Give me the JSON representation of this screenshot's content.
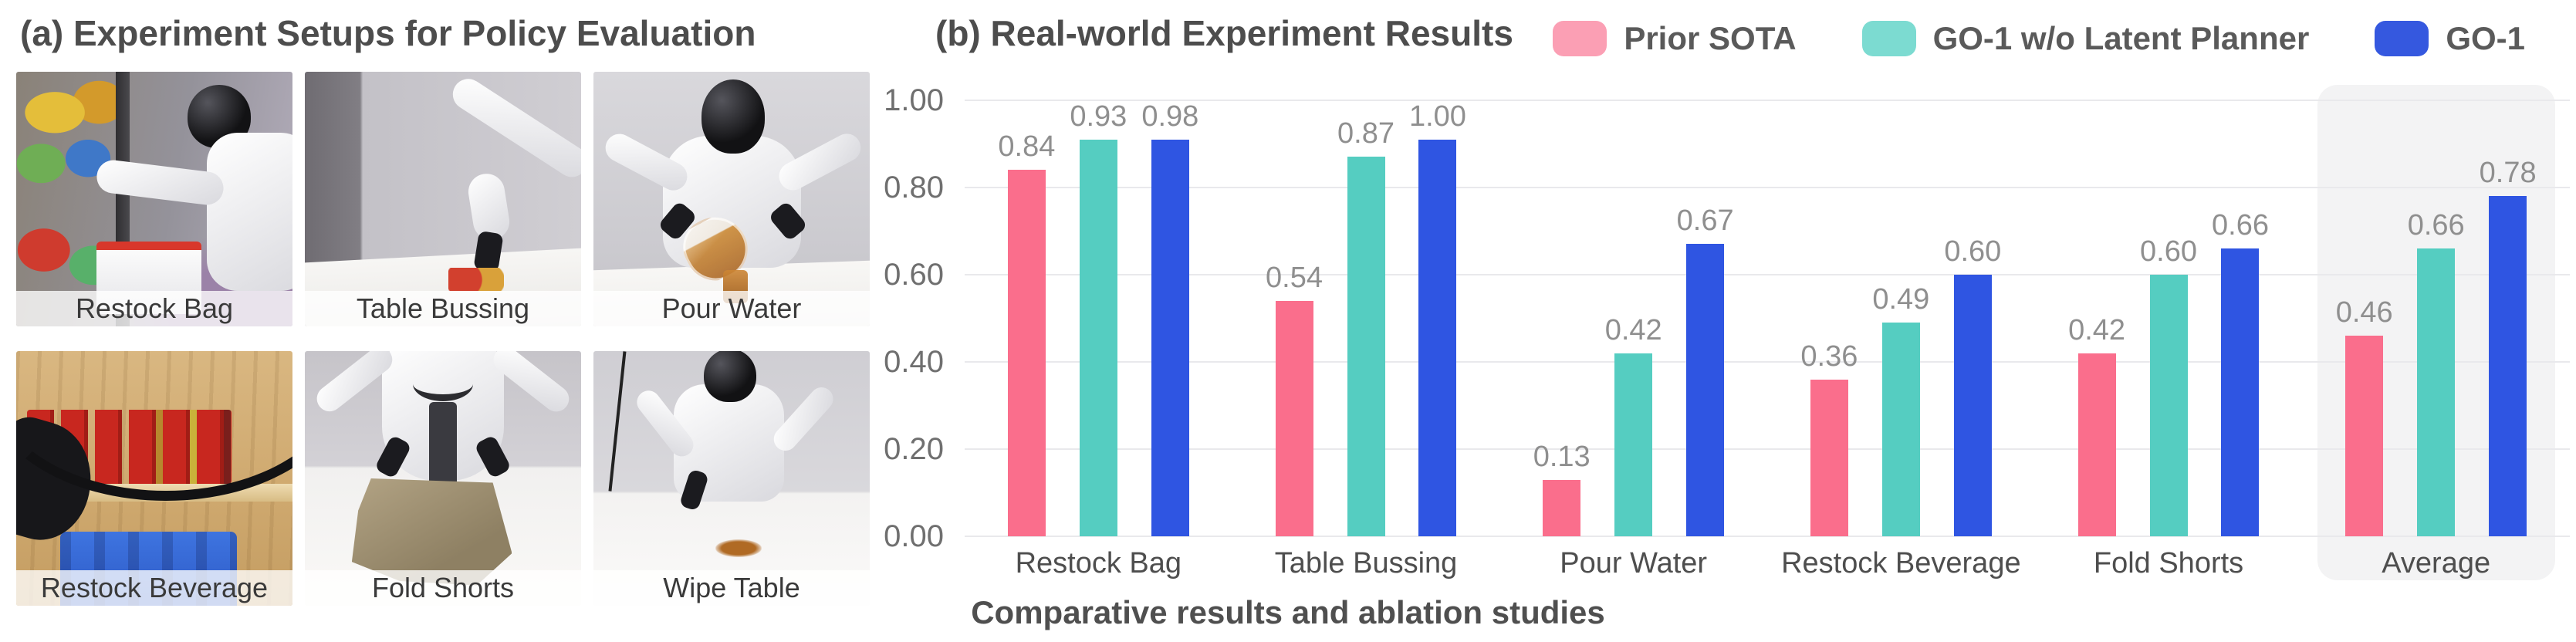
{
  "panel_a": {
    "title": "(a) Experiment Setups for Policy Evaluation",
    "photos": [
      {
        "label": "Restock Bag"
      },
      {
        "label": "Table Bussing"
      },
      {
        "label": "Pour Water"
      },
      {
        "label": "Restock Beverage"
      },
      {
        "label": "Fold Shorts"
      },
      {
        "label": "Wipe Table"
      }
    ]
  },
  "panel_b": {
    "title": "(b) Real-world Experiment Results",
    "caption": "Comparative results and ablation studies"
  },
  "legend": [
    {
      "label": "Prior SOTA",
      "swatch_color": "#FB9FB4"
    },
    {
      "label": "GO-1 w/o Latent Planner",
      "swatch_color": "#7CDBD1"
    },
    {
      "label": "GO-1",
      "swatch_color": "#3558DF"
    }
  ],
  "chart_data": {
    "type": "bar",
    "title": "(b) Real-world Experiment Results",
    "categories": [
      "Restock Bag",
      "Table Bussing",
      "Pour Water",
      "Restock Beverage",
      "Fold Shorts",
      "Average"
    ],
    "series": [
      {
        "name": "Prior SOTA",
        "color": "#FA6E8C",
        "values": [
          0.84,
          0.54,
          0.13,
          0.36,
          0.42,
          0.46
        ]
      },
      {
        "name": "GO-1 w/o Latent Planner",
        "color": "#55CDC1",
        "values": [
          0.93,
          0.87,
          0.42,
          0.49,
          0.6,
          0.66
        ]
      },
      {
        "name": "GO-1",
        "color": "#2F55E2",
        "values": [
          0.98,
          1.0,
          0.67,
          0.6,
          0.66,
          0.78
        ]
      }
    ],
    "yticks": [
      "0.00",
      "0.20",
      "0.40",
      "0.60",
      "0.80",
      "1.00"
    ],
    "ylim": [
      0,
      1.0
    ],
    "xlabel": "",
    "ylabel": "",
    "grid": true,
    "legend_position": "top-right",
    "highlight_category": "Average",
    "highlight_color": "#F3F3F4",
    "value_label_color": "#8F8F8F",
    "gridline_color": "#E9E9EC"
  }
}
